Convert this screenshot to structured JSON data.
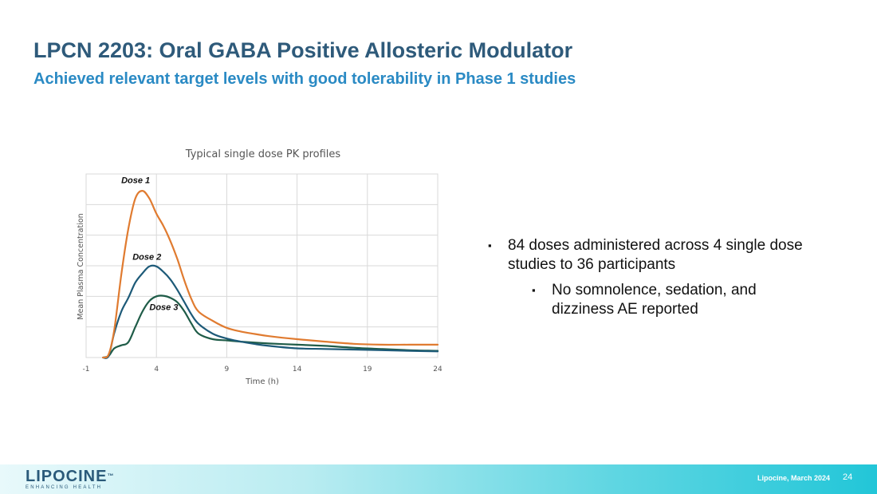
{
  "header": {
    "title": "LPCN 2203: Oral GABA Positive Allosteric Modulator",
    "subtitle": "Achieved relevant target levels with good tolerability in Phase 1 studies"
  },
  "chart_data": {
    "type": "line",
    "title": "Typical single dose PK profiles",
    "xlabel": "Time (h)",
    "ylabel": "Mean Plasma Concentration",
    "xlim": [
      -1,
      24
    ],
    "ylim": [
      0,
      6
    ],
    "x_ticks": [
      "-1",
      "4",
      "9",
      "14",
      "19",
      "24"
    ],
    "y_tick_labels_shown": false,
    "grid": true,
    "series": [
      {
        "name": "Dose 1",
        "color": "#e07b30",
        "points": [
          [
            0.2,
            0
          ],
          [
            0.6,
            0.1
          ],
          [
            1,
            0.9
          ],
          [
            1.5,
            2.7
          ],
          [
            2,
            4.2
          ],
          [
            2.5,
            5.2
          ],
          [
            3,
            5.45
          ],
          [
            3.5,
            5.2
          ],
          [
            4,
            4.7
          ],
          [
            4.5,
            4.3
          ],
          [
            5,
            3.8
          ],
          [
            5.5,
            3.2
          ],
          [
            6,
            2.5
          ],
          [
            6.5,
            1.9
          ],
          [
            7,
            1.5
          ],
          [
            8,
            1.2
          ],
          [
            9,
            0.97
          ],
          [
            10,
            0.85
          ],
          [
            11,
            0.77
          ],
          [
            12,
            0.7
          ],
          [
            14,
            0.6
          ],
          [
            16,
            0.52
          ],
          [
            18,
            0.45
          ],
          [
            20,
            0.42
          ],
          [
            22,
            0.42
          ],
          [
            24,
            0.42
          ]
        ]
      },
      {
        "name": "Dose 2",
        "color": "#1d5a78",
        "points": [
          [
            0.2,
            0
          ],
          [
            0.6,
            0.05
          ],
          [
            1,
            0.8
          ],
          [
            1.5,
            1.5
          ],
          [
            2,
            1.95
          ],
          [
            2.5,
            2.45
          ],
          [
            3,
            2.75
          ],
          [
            3.5,
            2.98
          ],
          [
            4,
            2.98
          ],
          [
            4.5,
            2.8
          ],
          [
            5,
            2.55
          ],
          [
            5.5,
            2.2
          ],
          [
            6,
            1.8
          ],
          [
            6.5,
            1.4
          ],
          [
            7,
            1.1
          ],
          [
            8,
            0.78
          ],
          [
            9,
            0.62
          ],
          [
            10,
            0.52
          ],
          [
            11,
            0.44
          ],
          [
            12,
            0.38
          ],
          [
            14,
            0.3
          ],
          [
            16,
            0.28
          ],
          [
            18,
            0.26
          ],
          [
            20,
            0.24
          ],
          [
            22,
            0.22
          ],
          [
            24,
            0.2
          ]
        ]
      },
      {
        "name": "Dose 3",
        "color": "#1f5c48",
        "points": [
          [
            0.2,
            0
          ],
          [
            0.6,
            0.05
          ],
          [
            1,
            0.3
          ],
          [
            1.5,
            0.4
          ],
          [
            2,
            0.5
          ],
          [
            2.5,
            1.0
          ],
          [
            3,
            1.5
          ],
          [
            3.5,
            1.85
          ],
          [
            4,
            2.0
          ],
          [
            4.5,
            2.02
          ],
          [
            5,
            1.95
          ],
          [
            5.5,
            1.8
          ],
          [
            6,
            1.5
          ],
          [
            6.5,
            1.1
          ],
          [
            7,
            0.78
          ],
          [
            8,
            0.6
          ],
          [
            9,
            0.56
          ],
          [
            10,
            0.52
          ],
          [
            12,
            0.46
          ],
          [
            14,
            0.42
          ],
          [
            16,
            0.38
          ],
          [
            18,
            0.32
          ],
          [
            20,
            0.28
          ],
          [
            22,
            0.24
          ],
          [
            24,
            0.22
          ]
        ]
      }
    ],
    "annotations": [
      {
        "text": "Dose 1",
        "series": 0,
        "x": 1.5,
        "y": 5.7
      },
      {
        "text": "Dose 2",
        "series": 1,
        "x": 2.3,
        "y": 3.2
      },
      {
        "text": "Dose 3",
        "series": 2,
        "x": 3.5,
        "y": 1.55
      }
    ]
  },
  "bullets": {
    "b1": "84 doses administered across 4 single dose studies to 36 participants",
    "b2": "No somnolence, sedation, and dizziness AE reported",
    "marker": "▪"
  },
  "footer": {
    "logo_word": "LIPOCINE",
    "logo_tm": "™",
    "logo_tagline": "ENHANCING HEALTH",
    "text": "Lipocine, March 2024",
    "page": "24"
  },
  "colors": {
    "title": "#2e5a7a",
    "subtitle": "#2a8ac4",
    "grid": "#d9d9d9"
  }
}
